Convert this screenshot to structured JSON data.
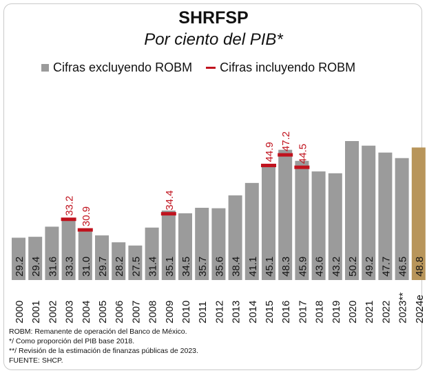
{
  "chart_data": {
    "type": "bar",
    "title": "SHRFSP",
    "subtitle": "Por ciento del PIB*",
    "categories": [
      "2000",
      "2001",
      "2002",
      "2003",
      "2004",
      "2005",
      "2006",
      "2007",
      "2008",
      "2009",
      "2010",
      "2011",
      "2012",
      "2013",
      "2014",
      "2015",
      "2016",
      "2017",
      "2018",
      "2019",
      "2020",
      "2021",
      "2022",
      "2023**",
      "2024e"
    ],
    "series": [
      {
        "name": "Cifras excluyendo ROBM",
        "values": [
          29.2,
          29.4,
          31.6,
          33.3,
          31.0,
          29.7,
          28.2,
          27.5,
          31.4,
          35.1,
          34.5,
          35.7,
          35.6,
          38.4,
          41.1,
          45.1,
          48.3,
          45.9,
          43.6,
          43.2,
          50.2,
          49.2,
          47.7,
          46.5,
          48.8
        ]
      },
      {
        "name": "Cifras incluyendo ROBM",
        "values": [
          null,
          null,
          null,
          33.2,
          30.9,
          null,
          null,
          null,
          null,
          34.4,
          null,
          null,
          null,
          null,
          null,
          44.9,
          47.2,
          44.5,
          null,
          null,
          null,
          null,
          null,
          null,
          null
        ]
      }
    ],
    "bar_labels": [
      "29.2",
      "29.4",
      "31.6",
      "33.3",
      "31.0",
      "29.7",
      "28.2",
      "27.5",
      "31.4",
      "35.1",
      "34.5",
      "35.7",
      "35.6",
      "38.4",
      "41.1",
      "45.1",
      "48.3",
      "45.9",
      "43.6",
      "43.2",
      "50.2",
      "49.2",
      "47.7",
      "46.5",
      "48.8"
    ],
    "robm_labels": [
      "",
      "",
      "",
      "33.2",
      "30.9",
      "",
      "",
      "",
      "",
      "34.4",
      "",
      "",
      "",
      "",
      "",
      "44.9",
      "47.2",
      "44.5",
      "",
      "",
      "",
      "",
      "",
      "",
      ""
    ],
    "ylim": [
      20,
      52
    ],
    "colors": {
      "bar": "#9b9b9b",
      "highlight": "#b8955a",
      "robm": "#c0121d",
      "robm_text": "#c0121d"
    },
    "highlight_index": 24,
    "legend_position": "top",
    "grid": false
  },
  "notes": [
    "ROBM: Remanente de operación del Banco de México.",
    "*/    Como proporción del PIB base 2018.",
    "**/ Revisión de la estimación de finanzas públicas de 2023.",
    "FUENTE: SHCP."
  ]
}
